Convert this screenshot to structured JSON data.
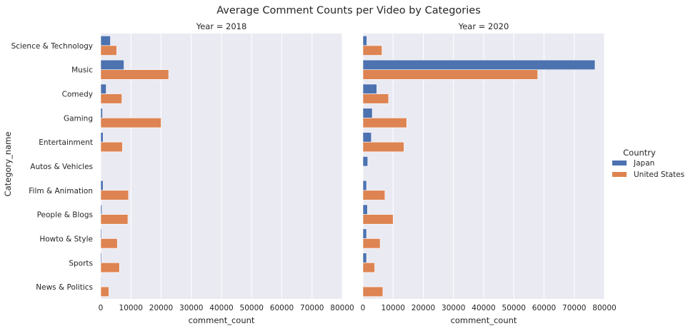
{
  "chart_data": {
    "type": "bar",
    "orientation": "horizontal",
    "title": "Average Comment Counts per Video by Categories",
    "ylabel": "Category_name",
    "xlabel": "comment_count",
    "xlim": [
      0,
      80000
    ],
    "x_ticks": [
      0,
      10000,
      20000,
      30000,
      40000,
      50000,
      60000,
      70000,
      80000
    ],
    "grid": true,
    "legend": {
      "title": "Country",
      "position": "right",
      "entries": [
        {
          "name": "Japan",
          "color": "#4c72b0"
        },
        {
          "name": "United States",
          "color": "#dd8452"
        }
      ]
    },
    "categories": [
      "Science & Technology",
      "Music",
      "Comedy",
      "Gaming",
      "Entertainment",
      "Autos & Vehicles",
      "Film & Animation",
      "People & Blogs",
      "Howto & Style",
      "Sports",
      "News & Politics"
    ],
    "facets": [
      {
        "title": "Year = 2018",
        "series": [
          {
            "name": "Japan",
            "values": [
              3200,
              7700,
              1800,
              600,
              800,
              0,
              800,
              400,
              300,
              300,
              200
            ]
          },
          {
            "name": "United States",
            "values": [
              5300,
              22500,
              7000,
              20000,
              7200,
              0,
              9200,
              9000,
              5500,
              6200,
              2700
            ]
          }
        ]
      },
      {
        "title": "Year = 2020",
        "series": [
          {
            "name": "Japan",
            "values": [
              1300,
              76900,
              4600,
              3100,
              2800,
              1600,
              1200,
              1500,
              1200,
              1200,
              0
            ]
          },
          {
            "name": "United States",
            "values": [
              6300,
              57900,
              8500,
              14500,
              13600,
              0,
              7300,
              10000,
              5700,
              3900,
              6600
            ]
          }
        ]
      }
    ]
  }
}
